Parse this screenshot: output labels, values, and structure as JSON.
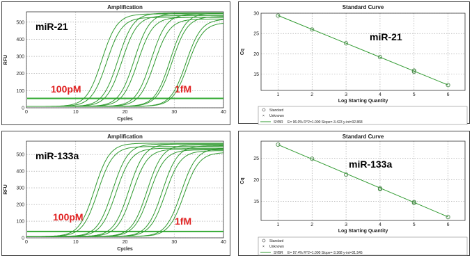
{
  "colors": {
    "curve": "#2f9a2f",
    "threshold": "#33aa33",
    "annotation_red": "#e02020",
    "grid": "#9a9a9a"
  },
  "chart_data": [
    {
      "type": "line",
      "panel": "amplification-top",
      "title": "Amplification",
      "xlabel": "Cycles",
      "ylabel": "RFU",
      "xlim": [
        0,
        40
      ],
      "ylim": [
        0,
        560
      ],
      "xticks": [
        "0",
        "10",
        "20",
        "30",
        "40"
      ],
      "yticks": [
        "0",
        "100",
        "200",
        "300",
        "400",
        "500"
      ],
      "grid": true,
      "threshold": 55,
      "labels": {
        "name": "miR-21",
        "high": "100pM",
        "low": "1fM"
      },
      "curves": [
        {
          "midpoint": 15.3,
          "plateau": 540
        },
        {
          "midpoint": 16.3,
          "plateau": 520
        },
        {
          "midpoint": 18.6,
          "plateau": 545
        },
        {
          "midpoint": 19.4,
          "plateau": 530
        },
        {
          "midpoint": 21.9,
          "plateau": 545
        },
        {
          "midpoint": 22.6,
          "plateau": 520
        },
        {
          "midpoint": 25.3,
          "plateau": 540
        },
        {
          "midpoint": 26.0,
          "plateau": 510
        },
        {
          "midpoint": 29.2,
          "plateau": 545
        },
        {
          "midpoint": 29.6,
          "plateau": 525
        },
        {
          "midpoint": 32.4,
          "plateau": 510
        },
        {
          "midpoint": 32.8,
          "plateau": 490
        }
      ]
    },
    {
      "type": "scatter",
      "panel": "standard-curve-top",
      "title": "Standard Curve",
      "xlabel": "Log Starting Quantity",
      "ylabel": "Cq",
      "xlim": [
        0.5,
        6.5
      ],
      "ylim": [
        11,
        30
      ],
      "xticks": [
        "1",
        "2",
        "3",
        "4",
        "5",
        "6"
      ],
      "yticks": [
        "15",
        "20",
        "25",
        "30"
      ],
      "grid": true,
      "label": "miR-21",
      "x": [
        1,
        2,
        3,
        4,
        5,
        5,
        6
      ],
      "y": [
        29.4,
        26.0,
        22.6,
        19.2,
        15.9,
        15.6,
        12.3
      ],
      "fit": {
        "slope": -3.423,
        "intercept": 32.868
      },
      "legend": {
        "standard": "Standard",
        "unknown": "Unknown",
        "fit_name": "SYBR",
        "fit_text": "E= 96.0% R^2=1.000 Slope=-3.423 y-int=32.868"
      }
    },
    {
      "type": "line",
      "panel": "amplification-bottom",
      "title": "Amplification",
      "xlabel": "Cycles",
      "ylabel": "RFU",
      "xlim": [
        0,
        40
      ],
      "ylim": [
        0,
        580
      ],
      "xticks": [
        "0",
        "10",
        "20",
        "30",
        "40"
      ],
      "yticks": [
        "0",
        "100",
        "200",
        "300",
        "400",
        "500"
      ],
      "grid": true,
      "threshold": 38,
      "labels": {
        "name": "miR-133a",
        "high": "100pM",
        "low": "1fM"
      },
      "curves": [
        {
          "midpoint": 13.8,
          "plateau": 560
        },
        {
          "midpoint": 14.5,
          "plateau": 540
        },
        {
          "midpoint": 17.5,
          "plateau": 555
        },
        {
          "midpoint": 18.2,
          "plateau": 530
        },
        {
          "midpoint": 20.8,
          "plateau": 555
        },
        {
          "midpoint": 21.5,
          "plateau": 525
        },
        {
          "midpoint": 24.5,
          "plateau": 550
        },
        {
          "midpoint": 25.0,
          "plateau": 520
        },
        {
          "midpoint": 27.6,
          "plateau": 545
        },
        {
          "midpoint": 28.2,
          "plateau": 515
        },
        {
          "midpoint": 31.4,
          "plateau": 530
        },
        {
          "midpoint": 32.0,
          "plateau": 505
        }
      ]
    },
    {
      "type": "scatter",
      "panel": "standard-curve-bottom",
      "title": "Standard Curve",
      "xlabel": "Log Starting Quantity",
      "ylabel": "Cq",
      "xlim": [
        0.5,
        6.5
      ],
      "ylim": [
        10.5,
        29
      ],
      "xticks": [
        "1",
        "2",
        "3",
        "4",
        "5",
        "6"
      ],
      "yticks": [
        "15",
        "20",
        "25"
      ],
      "grid": true,
      "label": "miR-133a",
      "x": [
        1,
        2,
        3,
        4,
        4,
        5,
        5,
        6
      ],
      "y": [
        28.2,
        24.9,
        21.2,
        18.0,
        17.8,
        14.8,
        14.6,
        11.3
      ],
      "fit": {
        "slope": -3.368,
        "intercept": 31.545
      },
      "legend": {
        "standard": "Standard",
        "unknown": "Unknown",
        "fit_name": "SYBR",
        "fit_text": "E= 97.4% R^2=1.000 Slope=-3.368 y-int=31.545"
      }
    }
  ]
}
